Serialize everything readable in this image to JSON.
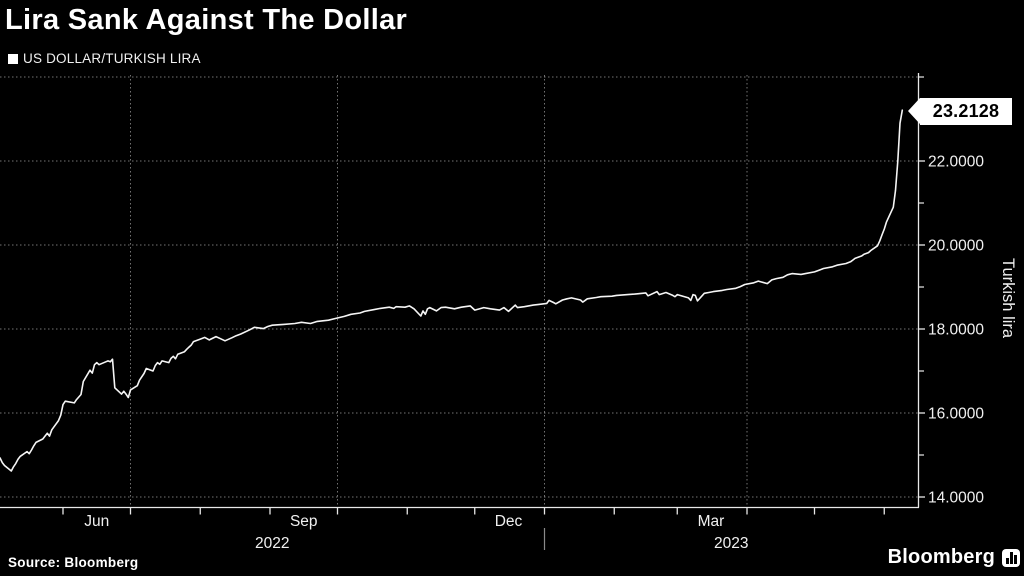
{
  "title": "Lira Sank Against The Dollar",
  "legend": {
    "swatch_color": "#ffffff",
    "label": "US DOLLAR/TURKISH LIRA"
  },
  "footer": {
    "source": "Source: Bloomberg",
    "brand": "Bloomberg",
    "brand_icon": "bar-chart-in-rounded-square-icon"
  },
  "last_value": {
    "label": "23.2128",
    "value": 23.2128
  },
  "colors": {
    "background": "#000000",
    "line": "#f5f5f5",
    "grid": "#9a9a9a",
    "axis": "#e8e8e8",
    "tick_label": "#f0f0f0",
    "tag_bg": "#ffffff",
    "tag_text": "#000000",
    "year_divider": "#8a8a8a"
  },
  "chart_data": {
    "type": "line",
    "title": "US DOLLAR/TURKISH LIRA",
    "ylabel": "Turkish lira",
    "legend_position": "top-left",
    "grid": "dotted",
    "x_range": [
      "2022-05-04",
      "2023-06-16"
    ],
    "ylim": [
      13.76,
      24.05
    ],
    "y_major_ticks": [
      {
        "value": 14,
        "label": "14.0000"
      },
      {
        "value": 16,
        "label": "16.0000"
      },
      {
        "value": 18,
        "label": "18.0000"
      },
      {
        "value": 20,
        "label": "20.0000"
      },
      {
        "value": 22,
        "label": "22.0000"
      }
    ],
    "y_minor_ticks": [
      15,
      17,
      19,
      21,
      23,
      24
    ],
    "y_gridlines": [
      14,
      16,
      18,
      20,
      22,
      24
    ],
    "x_month_ticks_start": "2022-06-01",
    "x_month_ticks_end": "2023-06-01",
    "x_gridline_dates": [
      "2022-07-01",
      "2022-10-01",
      "2023-01-01",
      "2023-04-01"
    ],
    "x_month_labels": [
      {
        "date": "2022-06-16",
        "label": "Jun"
      },
      {
        "date": "2022-09-16",
        "label": "Sep"
      },
      {
        "date": "2022-12-16",
        "label": "Dec"
      },
      {
        "date": "2023-03-16",
        "label": "Mar"
      }
    ],
    "x_year_labels": [
      {
        "label": "2022",
        "span": [
          "2022-05-04",
          "2023-01-01"
        ]
      },
      {
        "label": "2023",
        "span": [
          "2023-01-01",
          "2023-06-16"
        ]
      }
    ],
    "year_divider_date": "2023-01-01",
    "series": [
      {
        "name": "US DOLLAR/TURKISH LIRA",
        "color": "#f5f5f5",
        "points": [
          [
            "2022-05-04",
            14.93
          ],
          [
            "2022-05-05",
            14.82
          ],
          [
            "2022-05-06",
            14.75
          ],
          [
            "2022-05-09",
            14.62
          ],
          [
            "2022-05-10",
            14.72
          ],
          [
            "2022-05-11",
            14.8
          ],
          [
            "2022-05-12",
            14.9
          ],
          [
            "2022-05-13",
            14.97
          ],
          [
            "2022-05-16",
            15.08
          ],
          [
            "2022-05-17",
            15.03
          ],
          [
            "2022-05-18",
            15.12
          ],
          [
            "2022-05-19",
            15.22
          ],
          [
            "2022-05-20",
            15.3
          ],
          [
            "2022-05-23",
            15.38
          ],
          [
            "2022-05-24",
            15.45
          ],
          [
            "2022-05-25",
            15.52
          ],
          [
            "2022-05-26",
            15.45
          ],
          [
            "2022-05-27",
            15.6
          ],
          [
            "2022-05-30",
            15.82
          ],
          [
            "2022-05-31",
            15.95
          ],
          [
            "2022-06-01",
            16.2
          ],
          [
            "2022-06-02",
            16.28
          ],
          [
            "2022-06-06",
            16.24
          ],
          [
            "2022-06-07",
            16.32
          ],
          [
            "2022-06-08",
            16.38
          ],
          [
            "2022-06-09",
            16.44
          ],
          [
            "2022-06-10",
            16.75
          ],
          [
            "2022-06-13",
            17.02
          ],
          [
            "2022-06-14",
            16.95
          ],
          [
            "2022-06-15",
            17.15
          ],
          [
            "2022-06-16",
            17.2
          ],
          [
            "2022-06-17",
            17.15
          ],
          [
            "2022-06-20",
            17.22
          ],
          [
            "2022-06-21",
            17.24
          ],
          [
            "2022-06-22",
            17.22
          ],
          [
            "2022-06-23",
            17.28
          ],
          [
            "2022-06-24",
            16.6
          ],
          [
            "2022-06-27",
            16.45
          ],
          [
            "2022-06-28",
            16.52
          ],
          [
            "2022-06-29",
            16.45
          ],
          [
            "2022-06-30",
            16.37
          ],
          [
            "2022-07-01",
            16.55
          ],
          [
            "2022-07-04",
            16.65
          ],
          [
            "2022-07-05",
            16.78
          ],
          [
            "2022-07-07",
            16.94
          ],
          [
            "2022-07-08",
            17.06
          ],
          [
            "2022-07-11",
            17.0
          ],
          [
            "2022-07-12",
            17.13
          ],
          [
            "2022-07-13",
            17.2
          ],
          [
            "2022-07-14",
            17.16
          ],
          [
            "2022-07-15",
            17.24
          ],
          [
            "2022-07-18",
            17.2
          ],
          [
            "2022-07-19",
            17.3
          ],
          [
            "2022-07-20",
            17.35
          ],
          [
            "2022-07-21",
            17.29
          ],
          [
            "2022-07-22",
            17.4
          ],
          [
            "2022-07-25",
            17.46
          ],
          [
            "2022-07-26",
            17.52
          ],
          [
            "2022-07-27",
            17.57
          ],
          [
            "2022-07-28",
            17.62
          ],
          [
            "2022-07-29",
            17.7
          ],
          [
            "2022-08-01",
            17.76
          ],
          [
            "2022-08-03",
            17.8
          ],
          [
            "2022-08-05",
            17.74
          ],
          [
            "2022-08-08",
            17.82
          ],
          [
            "2022-08-10",
            17.77
          ],
          [
            "2022-08-12",
            17.72
          ],
          [
            "2022-08-15",
            17.79
          ],
          [
            "2022-08-17",
            17.84
          ],
          [
            "2022-08-19",
            17.88
          ],
          [
            "2022-08-23",
            17.98
          ],
          [
            "2022-08-25",
            18.04
          ],
          [
            "2022-08-29",
            18.01
          ],
          [
            "2022-08-31",
            18.06
          ],
          [
            "2022-09-02",
            18.09
          ],
          [
            "2022-09-07",
            18.11
          ],
          [
            "2022-09-12",
            18.13
          ],
          [
            "2022-09-15",
            18.16
          ],
          [
            "2022-09-19",
            18.13
          ],
          [
            "2022-09-22",
            18.18
          ],
          [
            "2022-09-27",
            18.21
          ],
          [
            "2022-09-30",
            18.25
          ],
          [
            "2022-10-04",
            18.3
          ],
          [
            "2022-10-07",
            18.35
          ],
          [
            "2022-10-11",
            18.38
          ],
          [
            "2022-10-13",
            18.42
          ],
          [
            "2022-10-17",
            18.46
          ],
          [
            "2022-10-20",
            18.49
          ],
          [
            "2022-10-24",
            18.52
          ],
          [
            "2022-10-26",
            18.49
          ],
          [
            "2022-10-27",
            18.53
          ],
          [
            "2022-10-31",
            18.52
          ],
          [
            "2022-11-02",
            18.55
          ],
          [
            "2022-11-04",
            18.48
          ],
          [
            "2022-11-07",
            18.31
          ],
          [
            "2022-11-08",
            18.43
          ],
          [
            "2022-11-09",
            18.35
          ],
          [
            "2022-11-10",
            18.48
          ],
          [
            "2022-11-11",
            18.51
          ],
          [
            "2022-11-14",
            18.43
          ],
          [
            "2022-11-16",
            18.51
          ],
          [
            "2022-11-18",
            18.52
          ],
          [
            "2022-11-22",
            18.48
          ],
          [
            "2022-11-25",
            18.52
          ],
          [
            "2022-11-29",
            18.55
          ],
          [
            "2022-12-01",
            18.45
          ],
          [
            "2022-12-05",
            18.51
          ],
          [
            "2022-12-08",
            18.48
          ],
          [
            "2022-12-12",
            18.45
          ],
          [
            "2022-12-14",
            18.51
          ],
          [
            "2022-12-16",
            18.42
          ],
          [
            "2022-12-19",
            18.57
          ],
          [
            "2022-12-20",
            18.51
          ],
          [
            "2022-12-23",
            18.53
          ],
          [
            "2022-12-27",
            18.57
          ],
          [
            "2022-12-29",
            18.58
          ],
          [
            "2023-01-02",
            18.61
          ],
          [
            "2023-01-03",
            18.68
          ],
          [
            "2023-01-05",
            18.63
          ],
          [
            "2023-01-06",
            18.6
          ],
          [
            "2023-01-09",
            18.69
          ],
          [
            "2023-01-11",
            18.72
          ],
          [
            "2023-01-13",
            18.74
          ],
          [
            "2023-01-17",
            18.69
          ],
          [
            "2023-01-18",
            18.64
          ],
          [
            "2023-01-20",
            18.72
          ],
          [
            "2023-01-24",
            18.75
          ],
          [
            "2023-01-26",
            18.77
          ],
          [
            "2023-01-31",
            18.78
          ],
          [
            "2023-02-02",
            18.8
          ],
          [
            "2023-02-07",
            18.82
          ],
          [
            "2023-02-10",
            18.83
          ],
          [
            "2023-02-15",
            18.86
          ],
          [
            "2023-02-16",
            18.79
          ],
          [
            "2023-02-20",
            18.89
          ],
          [
            "2023-02-21",
            18.82
          ],
          [
            "2023-02-24",
            18.87
          ],
          [
            "2023-02-27",
            18.8
          ],
          [
            "2023-02-28",
            18.77
          ],
          [
            "2023-03-01",
            18.82
          ],
          [
            "2023-03-06",
            18.74
          ],
          [
            "2023-03-07",
            18.68
          ],
          [
            "2023-03-08",
            18.82
          ],
          [
            "2023-03-09",
            18.8
          ],
          [
            "2023-03-10",
            18.67
          ],
          [
            "2023-03-13",
            18.85
          ],
          [
            "2023-03-15",
            18.87
          ],
          [
            "2023-03-17",
            18.89
          ],
          [
            "2023-03-21",
            18.92
          ],
          [
            "2023-03-23",
            18.94
          ],
          [
            "2023-03-27",
            18.97
          ],
          [
            "2023-03-29",
            19.01
          ],
          [
            "2023-03-31",
            19.06
          ],
          [
            "2023-04-04",
            19.1
          ],
          [
            "2023-04-06",
            19.14
          ],
          [
            "2023-04-10",
            19.08
          ],
          [
            "2023-04-12",
            19.17
          ],
          [
            "2023-04-14",
            19.2
          ],
          [
            "2023-04-17",
            19.23
          ],
          [
            "2023-04-19",
            19.29
          ],
          [
            "2023-04-21",
            19.32
          ],
          [
            "2023-04-25",
            19.3
          ],
          [
            "2023-04-27",
            19.32
          ],
          [
            "2023-05-01",
            19.36
          ],
          [
            "2023-05-03",
            19.4
          ],
          [
            "2023-05-05",
            19.44
          ],
          [
            "2023-05-09",
            19.48
          ],
          [
            "2023-05-11",
            19.52
          ],
          [
            "2023-05-15",
            19.56
          ],
          [
            "2023-05-17",
            19.6
          ],
          [
            "2023-05-18",
            19.64
          ],
          [
            "2023-05-19",
            19.68
          ],
          [
            "2023-05-22",
            19.74
          ],
          [
            "2023-05-23",
            19.78
          ],
          [
            "2023-05-25",
            19.82
          ],
          [
            "2023-05-26",
            19.87
          ],
          [
            "2023-05-29",
            19.98
          ],
          [
            "2023-05-30",
            20.1
          ],
          [
            "2023-05-31",
            20.24
          ],
          [
            "2023-06-01",
            20.38
          ],
          [
            "2023-06-02",
            20.55
          ],
          [
            "2023-06-05",
            20.9
          ],
          [
            "2023-06-06",
            21.3
          ],
          [
            "2023-06-07",
            22.0
          ],
          [
            "2023-06-08",
            22.9
          ],
          [
            "2023-06-09",
            23.21
          ]
        ]
      }
    ]
  }
}
